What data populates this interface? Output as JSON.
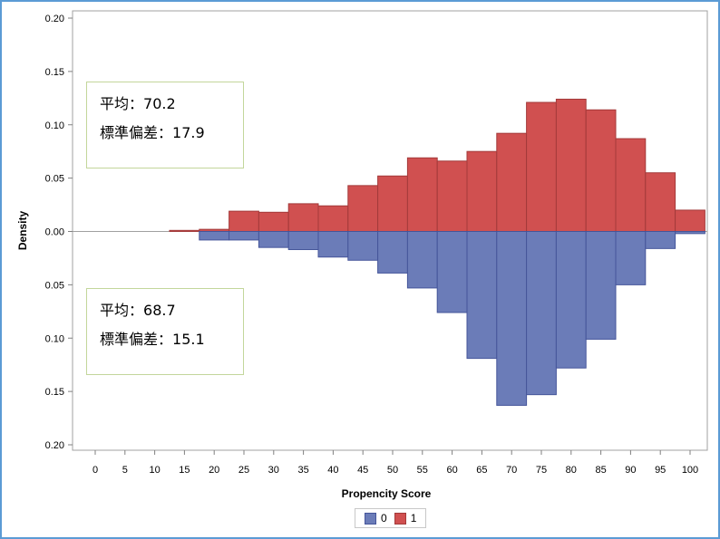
{
  "chart_data": {
    "type": "bar",
    "xlabel": "Propencity Score",
    "ylabel": "Density",
    "xlim": [
      0,
      100
    ],
    "ylim": [
      -0.2,
      0.2
    ],
    "x_ticks": [
      "0",
      "5",
      "10",
      "15",
      "20",
      "25",
      "30",
      "35",
      "40",
      "45",
      "50",
      "55",
      "60",
      "65",
      "70",
      "75",
      "80",
      "85",
      "90",
      "95",
      "100"
    ],
    "y_ticks": [
      {
        "value": 0.2,
        "label": "0.20"
      },
      {
        "value": 0.15,
        "label": "0.15"
      },
      {
        "value": 0.1,
        "label": "0.10"
      },
      {
        "value": 0.05,
        "label": "0.05"
      },
      {
        "value": 0.0,
        "label": "0.00"
      },
      {
        "value": -0.05,
        "label": "0.05"
      },
      {
        "value": -0.1,
        "label": "0.10"
      },
      {
        "value": -0.15,
        "label": "0.15"
      },
      {
        "value": -0.2,
        "label": "0.20"
      }
    ],
    "bin_width": 5,
    "legend_position": "bottom",
    "grid": false,
    "series": [
      {
        "name": "1",
        "direction": "up",
        "color": "#d05050",
        "edge_color": "#a33a3a",
        "bins": [
          {
            "x": 15,
            "value": 0.001
          },
          {
            "x": 20,
            "value": 0.002
          },
          {
            "x": 25,
            "value": 0.019
          },
          {
            "x": 30,
            "value": 0.018
          },
          {
            "x": 35,
            "value": 0.026
          },
          {
            "x": 40,
            "value": 0.024
          },
          {
            "x": 45,
            "value": 0.043
          },
          {
            "x": 50,
            "value": 0.052
          },
          {
            "x": 55,
            "value": 0.069
          },
          {
            "x": 60,
            "value": 0.066
          },
          {
            "x": 65,
            "value": 0.075
          },
          {
            "x": 70,
            "value": 0.092
          },
          {
            "x": 75,
            "value": 0.121
          },
          {
            "x": 80,
            "value": 0.124
          },
          {
            "x": 85,
            "value": 0.114
          },
          {
            "x": 90,
            "value": 0.087
          },
          {
            "x": 95,
            "value": 0.055
          },
          {
            "x": 100,
            "value": 0.02
          }
        ],
        "stats": [
          {
            "label": "平均：",
            "value": "70.2"
          },
          {
            "label": "標準偏差：",
            "value": "17.9"
          }
        ]
      },
      {
        "name": "0",
        "direction": "down",
        "color": "#6b7cb8",
        "edge_color": "#45559a",
        "bins": [
          {
            "x": 20,
            "value": 0.008
          },
          {
            "x": 25,
            "value": 0.008
          },
          {
            "x": 30,
            "value": 0.015
          },
          {
            "x": 35,
            "value": 0.017
          },
          {
            "x": 40,
            "value": 0.024
          },
          {
            "x": 45,
            "value": 0.027
          },
          {
            "x": 50,
            "value": 0.039
          },
          {
            "x": 55,
            "value": 0.053
          },
          {
            "x": 60,
            "value": 0.076
          },
          {
            "x": 65,
            "value": 0.119
          },
          {
            "x": 70,
            "value": 0.163
          },
          {
            "x": 75,
            "value": 0.153
          },
          {
            "x": 80,
            "value": 0.128
          },
          {
            "x": 85,
            "value": 0.101
          },
          {
            "x": 90,
            "value": 0.05
          },
          {
            "x": 95,
            "value": 0.016
          },
          {
            "x": 100,
            "value": 0.002
          }
        ],
        "stats": [
          {
            "label": "平均：",
            "value": "68.7"
          },
          {
            "label": "標準偏差：",
            "value": "15.1"
          }
        ]
      }
    ]
  }
}
